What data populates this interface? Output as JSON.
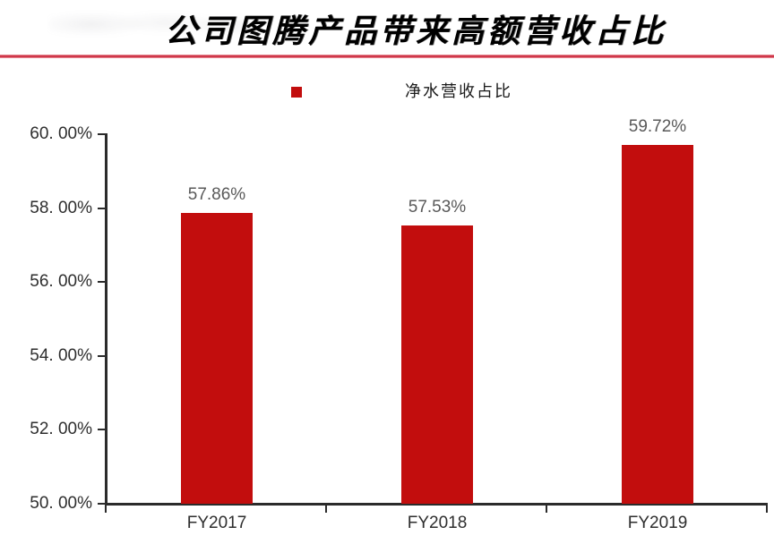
{
  "header": {
    "title": "公司图腾产品带来高额营收占比"
  },
  "legend": {
    "label": "净水营收占比",
    "marker_color": "#c20d0d"
  },
  "colors": {
    "bar": "#c20d0d",
    "divider": "#cd3244",
    "axis": "#2b2b2b",
    "axis_label": "#2e2e2e",
    "data_label": "#595959",
    "title": "#000000"
  },
  "chart_data": {
    "type": "bar",
    "title": "公司图腾产品带来高额营收占比",
    "legend_entries": [
      "净水营收占比"
    ],
    "legend_position": "top-center",
    "categories": [
      "FY2017",
      "FY2018",
      "FY2019"
    ],
    "values": [
      57.86,
      57.53,
      59.72
    ],
    "value_labels": [
      "57.86%",
      "57.53%",
      "59.72%"
    ],
    "ylabel": "",
    "xlabel": "",
    "ylim": [
      50,
      60
    ],
    "y_tick_values": [
      50,
      52,
      54,
      56,
      58,
      60
    ],
    "y_tick_labels": [
      "50. 00%",
      "52. 00%",
      "54. 00%",
      "56. 00%",
      "58. 00%",
      "60. 00%"
    ],
    "grid": false,
    "bar_color": "#c20d0d"
  }
}
